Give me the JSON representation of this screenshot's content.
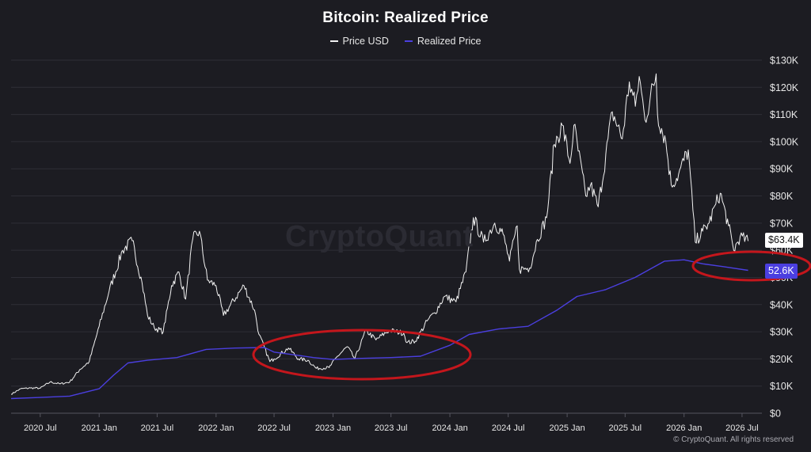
{
  "chart_data": {
    "type": "line",
    "title": "Bitcoin: Realized Price",
    "legend_placement": "top-center",
    "grid": true,
    "ylim": [
      0,
      130000
    ],
    "y_ticks": [
      "$0",
      "$10K",
      "$20K",
      "$30K",
      "$40K",
      "$50K",
      "$60K",
      "$70K",
      "$80K",
      "$90K",
      "$100K",
      "$110K",
      "$120K",
      "$130K"
    ],
    "x_ticks": [
      "2020 Jul",
      "2021 Jan",
      "2021 Jul",
      "2022 Jan",
      "2022 Jul",
      "2023 Jan",
      "2023 Jul",
      "2024 Jan",
      "2024 Jul",
      "2025 Jan",
      "2025 Jul",
      "2026 Jan",
      "2026 Jul"
    ],
    "series": [
      {
        "name": "Price USD",
        "color": "#f2f2f2",
        "points": [
          [
            "2020-04-01",
            7000
          ],
          [
            "2020-05-01",
            9000
          ],
          [
            "2020-06-01",
            9300
          ],
          [
            "2020-07-01",
            9200
          ],
          [
            "2020-08-01",
            11500
          ],
          [
            "2020-09-01",
            10800
          ],
          [
            "2020-10-01",
            11500
          ],
          [
            "2020-11-01",
            16000
          ],
          [
            "2020-12-01",
            19000
          ],
          [
            "2021-01-01",
            32000
          ],
          [
            "2021-02-01",
            45000
          ],
          [
            "2021-03-15",
            60000
          ],
          [
            "2021-04-14",
            63500
          ],
          [
            "2021-05-15",
            48000
          ],
          [
            "2021-06-01",
            36000
          ],
          [
            "2021-06-22",
            31500
          ],
          [
            "2021-07-20",
            30000
          ],
          [
            "2021-08-15",
            47000
          ],
          [
            "2021-09-07",
            52000
          ],
          [
            "2021-09-28",
            42000
          ],
          [
            "2021-10-20",
            64000
          ],
          [
            "2021-11-10",
            67000
          ],
          [
            "2021-12-05",
            49000
          ],
          [
            "2022-01-01",
            47000
          ],
          [
            "2022-01-24",
            36000
          ],
          [
            "2022-03-29",
            47000
          ],
          [
            "2022-05-01",
            38000
          ],
          [
            "2022-05-15",
            29000
          ],
          [
            "2022-06-18",
            19000
          ],
          [
            "2022-07-01",
            20000
          ],
          [
            "2022-08-15",
            24000
          ],
          [
            "2022-09-15",
            20000
          ],
          [
            "2022-10-15",
            19500
          ],
          [
            "2022-11-10",
            16500
          ],
          [
            "2022-12-20",
            16800
          ],
          [
            "2023-01-15",
            21000
          ],
          [
            "2023-02-15",
            24500
          ],
          [
            "2023-03-10",
            20000
          ],
          [
            "2023-04-14",
            30500
          ],
          [
            "2023-05-15",
            27000
          ],
          [
            "2023-06-25",
            30500
          ],
          [
            "2023-08-10",
            29500
          ],
          [
            "2023-08-20",
            26000
          ],
          [
            "2023-09-15",
            26500
          ],
          [
            "2023-10-25",
            34500
          ],
          [
            "2023-11-15",
            37000
          ],
          [
            "2023-12-15",
            43000
          ],
          [
            "2024-01-20",
            41000
          ],
          [
            "2024-02-20",
            52000
          ],
          [
            "2024-03-14",
            72000
          ],
          [
            "2024-04-15",
            63000
          ],
          [
            "2024-05-20",
            70000
          ],
          [
            "2024-06-15",
            66000
          ],
          [
            "2024-07-05",
            56000
          ],
          [
            "2024-07-29",
            69000
          ],
          [
            "2024-08-05",
            53000
          ],
          [
            "2024-09-06",
            53500
          ],
          [
            "2024-09-30",
            64000
          ],
          [
            "2024-10-29",
            72000
          ],
          [
            "2024-11-22",
            99000
          ],
          [
            "2024-12-17",
            106000
          ],
          [
            "2025-01-10",
            92000
          ],
          [
            "2025-01-22",
            106000
          ],
          [
            "2025-02-28",
            80000
          ],
          [
            "2025-03-15",
            84000
          ],
          [
            "2025-04-08",
            76000
          ],
          [
            "2025-05-22",
            111000
          ],
          [
            "2025-06-22",
            101000
          ],
          [
            "2025-07-14",
            122000
          ],
          [
            "2025-08-02",
            113000
          ],
          [
            "2025-08-14",
            124000
          ],
          [
            "2025-09-01",
            108000
          ],
          [
            "2025-10-06",
            125000
          ],
          [
            "2025-10-10",
            110000
          ],
          [
            "2025-11-05",
            100000
          ],
          [
            "2025-11-22",
            84000
          ],
          [
            "2025-12-15",
            88000
          ],
          [
            "2026-01-14",
            97000
          ],
          [
            "2026-02-05",
            63000
          ],
          [
            "2026-02-28",
            67000
          ],
          [
            "2026-03-20",
            70000
          ],
          [
            "2026-04-10",
            77000
          ],
          [
            "2026-04-24",
            81000
          ],
          [
            "2026-05-20",
            69000
          ],
          [
            "2026-06-05",
            60000
          ],
          [
            "2026-06-25",
            65000
          ],
          [
            "2026-07-20",
            63400
          ]
        ]
      },
      {
        "name": "Realized Price",
        "color": "#4b3fe0",
        "points": [
          [
            "2020-04-01",
            5400
          ],
          [
            "2020-07-01",
            5800
          ],
          [
            "2020-10-01",
            6300
          ],
          [
            "2021-01-01",
            9000
          ],
          [
            "2021-02-15",
            14000
          ],
          [
            "2021-04-01",
            18500
          ],
          [
            "2021-06-01",
            19500
          ],
          [
            "2021-09-01",
            20500
          ],
          [
            "2021-12-01",
            23500
          ],
          [
            "2022-03-01",
            24000
          ],
          [
            "2022-06-01",
            24200
          ],
          [
            "2022-07-01",
            22500
          ],
          [
            "2022-09-01",
            21500
          ],
          [
            "2022-11-01",
            20500
          ],
          [
            "2023-01-01",
            19800
          ],
          [
            "2023-04-01",
            20200
          ],
          [
            "2023-07-01",
            20500
          ],
          [
            "2023-10-01",
            21000
          ],
          [
            "2024-01-01",
            25000
          ],
          [
            "2024-03-01",
            29000
          ],
          [
            "2024-06-01",
            31000
          ],
          [
            "2024-09-01",
            32000
          ],
          [
            "2024-12-01",
            38000
          ],
          [
            "2025-02-01",
            43000
          ],
          [
            "2025-05-01",
            45500
          ],
          [
            "2025-08-01",
            50000
          ],
          [
            "2025-11-01",
            56000
          ],
          [
            "2026-01-01",
            56500
          ],
          [
            "2026-03-01",
            55000
          ],
          [
            "2026-05-01",
            54000
          ],
          [
            "2026-07-20",
            52600
          ]
        ]
      }
    ],
    "value_labels": {
      "price": "$63.4K",
      "realized": "52.6K"
    },
    "annotations": [
      {
        "type": "ellipse",
        "color": "#cc1f1f",
        "covers": "2022 Jul – 2024 Jan, near the realized price"
      },
      {
        "type": "ellipse",
        "color": "#cc1f1f",
        "covers": "2026 Jan – 2026 Jul, current price near the realized price"
      }
    ]
  },
  "watermark": "CryptoQuant",
  "copyright": "© CryptoQuant. All rights reserved"
}
